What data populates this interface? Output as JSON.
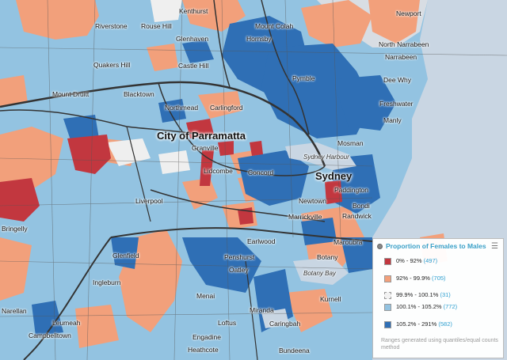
{
  "map": {
    "colors": {
      "class1": "#c2373f",
      "class2": "#f2a07b",
      "class3": "#f2f2f2",
      "class4": "#93c3e1",
      "class5": "#2f6fb5",
      "water": "#c9d6e3",
      "road": "#333333"
    }
  },
  "labels": {
    "kenthurst": "Kenthurst",
    "newport": "Newport",
    "riverstone": "Riverstone",
    "rouse_hill": "Rouse Hill",
    "mount_colah": "Mount Colah",
    "glenhaven": "Glenhaven",
    "hornsby": "Hornsby",
    "north_narrabeen": "North Narrabeen",
    "narrabeen": "Narrabeen",
    "quakers_hill": "Quakers Hill",
    "castle_hill": "Castle Hill",
    "pymble": "Pymble",
    "dee_why": "Dee Why",
    "mount_druitt": "Mount Druitt",
    "blacktown": "Blacktown",
    "freshwater": "Freshwater",
    "northmead": "Northmead",
    "carlingford": "Carlingford",
    "manly": "Manly",
    "parramatta": "City of Parramatta",
    "granville": "Granville",
    "mosman": "Mosman",
    "sydney_harbour": "Sydney Harbour",
    "lidcombe": "Lidcombe",
    "concord": "Concord",
    "sydney": "Sydney",
    "paddington": "Paddington",
    "liverpool": "Liverpool",
    "newtown": "Newtown",
    "bondi": "Bondi",
    "marrickville": "Marrickville",
    "randwick": "Randwick",
    "bringelly": "Bringelly",
    "earlwood": "Earlwood",
    "maroubra": "Maroubra",
    "glenfield": "Glenfield",
    "penshurst": "Penshurst",
    "botany": "Botany",
    "botany_bay": "Botany Bay",
    "oatley": "Oatley",
    "ingleburn": "Ingleburn",
    "menai": "Menai",
    "kurnell": "Kurnell",
    "narellan": "Narellan",
    "leumeah": "Leumeah",
    "loftus": "Loftus",
    "miranda": "Miranda",
    "campbelltown": "Campbelltown",
    "caringbah": "Caringbah",
    "engadine": "Engadine",
    "heathcote": "Heathcote",
    "bundeena": "Bundeena"
  },
  "legend": {
    "title": "Proportion of Females to Males",
    "items": [
      {
        "range": "0% - 92%",
        "count": "(497)"
      },
      {
        "range": "92% - 99.9%",
        "count": "(705)"
      },
      {
        "range": "99.9% - 100.1%",
        "count": "(31)"
      },
      {
        "range": "100.1% - 105.2%",
        "count": "(772)"
      },
      {
        "range": "105.2% - 291%",
        "count": "(582)"
      }
    ],
    "note": "Ranges generated using quantiles/equal counts method"
  }
}
